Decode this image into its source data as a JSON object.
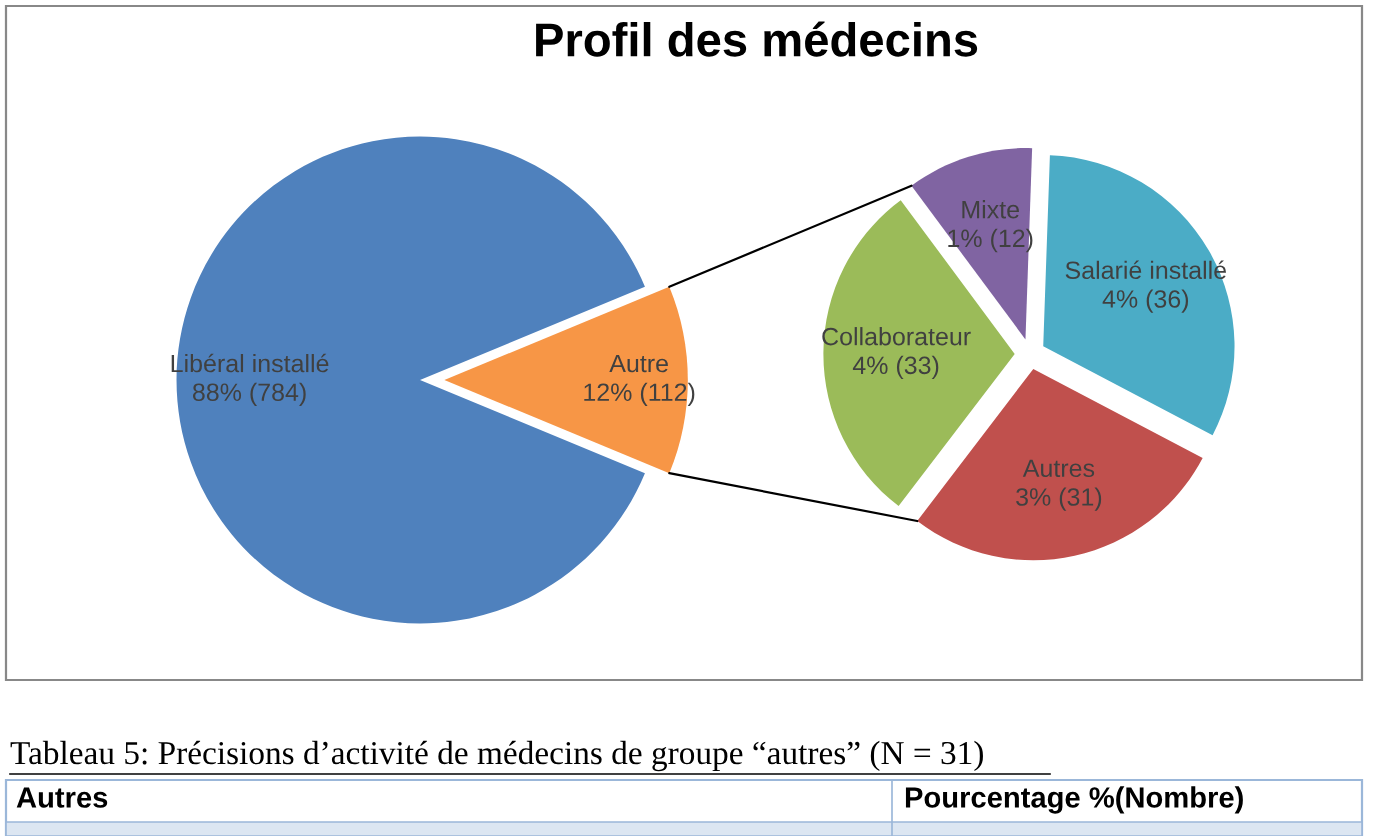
{
  "chart_data": [
    {
      "type": "pie",
      "title": "Profil des médecins",
      "categories": [
        "Libéral installé",
        "Autre"
      ],
      "values": [
        784,
        112
      ],
      "colors": [
        "#4f81bd",
        "#f79646"
      ],
      "value_labels": [
        "88% (784)",
        "12% (112)"
      ],
      "annotations": [
        "Tableau 5: Précisions d’activité de médecins de groupe “autres” (N = 31)",
        "Autres",
        "Pourcentage %(Nombre)"
      ]
    },
    {
      "type": "pie",
      "categories": [
        "Mixte",
        "Salarié installé",
        "Autres",
        "Collaborateur"
      ],
      "values": [
        12,
        36,
        31,
        33
      ],
      "colors": [
        "#8064a2",
        "#4bacc6",
        "#c0504d",
        "#9bbb59"
      ],
      "value_labels": [
        "1% (12)",
        "4% (36)",
        "3% (31)",
        "4% (33)"
      ]
    }
  ]
}
